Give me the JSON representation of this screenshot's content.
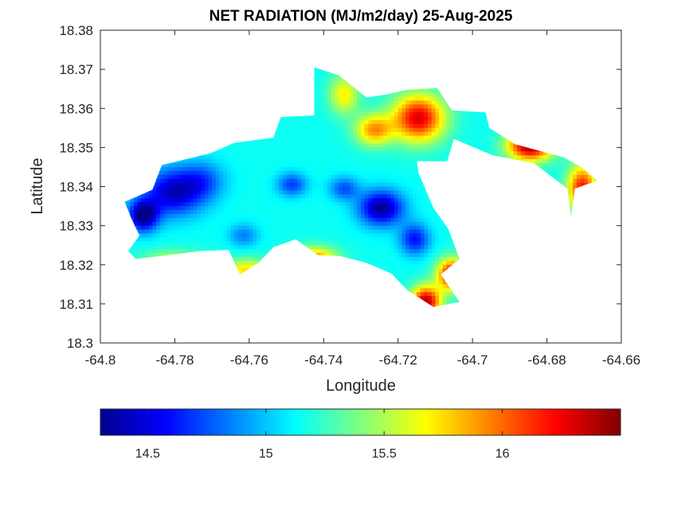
{
  "chart_data": {
    "type": "heatmap",
    "title": "NET RADIATION (MJ/m2/day) 25-Aug-2025",
    "xlabel": "Longitude",
    "ylabel": "Latitude",
    "xlim": [
      -64.8,
      -64.66
    ],
    "ylim": [
      18.3,
      18.38
    ],
    "x_ticks": [
      -64.8,
      -64.78,
      -64.76,
      -64.74,
      -64.72,
      -64.7,
      -64.68,
      -64.66
    ],
    "x_tick_labels": [
      "-64.8",
      "-64.78",
      "-64.76",
      "-64.74",
      "-64.72",
      "-64.7",
      "-64.68",
      "-64.66"
    ],
    "y_ticks": [
      18.3,
      18.31,
      18.32,
      18.33,
      18.34,
      18.35,
      18.36,
      18.37,
      18.38
    ],
    "y_tick_labels": [
      "18.3",
      "18.31",
      "18.32",
      "18.33",
      "18.34",
      "18.35",
      "18.36",
      "18.37",
      "18.38"
    ],
    "grid": false,
    "colormap": "jet",
    "colorbar": {
      "location": "bottom",
      "clim": [
        14.3,
        16.5
      ],
      "ticks": [
        14.5,
        15,
        15.5,
        16
      ],
      "tick_labels": [
        "14.5",
        "15",
        "15.5",
        "16"
      ]
    },
    "region_outline": [
      [
        -64.7925,
        18.3365
      ],
      [
        -64.786,
        18.3392
      ],
      [
        -64.7835,
        18.3455
      ],
      [
        -64.7705,
        18.3485
      ],
      [
        -64.764,
        18.3512
      ],
      [
        -64.7535,
        18.3525
      ],
      [
        -64.7515,
        18.3578
      ],
      [
        -64.7425,
        18.3582
      ],
      [
        -64.7425,
        18.3705
      ],
      [
        -64.736,
        18.3685
      ],
      [
        -64.7285,
        18.3628
      ],
      [
        -64.7235,
        18.3635
      ],
      [
        -64.7175,
        18.3648
      ],
      [
        -64.7095,
        18.3652
      ],
      [
        -64.7055,
        18.3595
      ],
      [
        -64.6965,
        18.359
      ],
      [
        -64.6955,
        18.355
      ],
      [
        -64.6885,
        18.3508
      ],
      [
        -64.6755,
        18.3475
      ],
      [
        -64.6705,
        18.3448
      ],
      [
        -64.6665,
        18.3415
      ],
      [
        -64.6725,
        18.3395
      ],
      [
        -64.6735,
        18.3325
      ],
      [
        -64.6745,
        18.3395
      ],
      [
        -64.6835,
        18.346
      ],
      [
        -64.6945,
        18.348
      ],
      [
        -64.705,
        18.3522
      ],
      [
        -64.7068,
        18.3465
      ],
      [
        -64.715,
        18.3465
      ],
      [
        -64.7145,
        18.3435
      ],
      [
        -64.7105,
        18.3345
      ],
      [
        -64.7065,
        18.3292
      ],
      [
        -64.7035,
        18.3215
      ],
      [
        -64.7085,
        18.3175
      ],
      [
        -64.7035,
        18.3105
      ],
      [
        -64.7105,
        18.3092
      ],
      [
        -64.7175,
        18.3135
      ],
      [
        -64.7218,
        18.3178
      ],
      [
        -64.7285,
        18.3205
      ],
      [
        -64.7355,
        18.3222
      ],
      [
        -64.7415,
        18.3225
      ],
      [
        -64.7475,
        18.3265
      ],
      [
        -64.7535,
        18.3245
      ],
      [
        -64.7575,
        18.3205
      ],
      [
        -64.7625,
        18.3175
      ],
      [
        -64.7655,
        18.3238
      ],
      [
        -64.7735,
        18.3235
      ],
      [
        -64.7815,
        18.3225
      ],
      [
        -64.7905,
        18.3215
      ],
      [
        -64.7925,
        18.3235
      ],
      [
        -64.7895,
        18.3275
      ],
      [
        -64.7915,
        18.3315
      ],
      [
        -64.7935,
        18.3362
      ]
    ],
    "value_field": {
      "background": 15.15,
      "anomalies": [
        {
          "lon": -64.7885,
          "lat": 18.3325,
          "peak": 14.3,
          "lon_scale": 0.004,
          "lat_scale": 0.004
        },
        {
          "lon": -64.7805,
          "lat": 18.3385,
          "peak": 14.45,
          "lon_scale": 0.008,
          "lat_scale": 0.006
        },
        {
          "lon": -64.7725,
          "lat": 18.3415,
          "peak": 14.8,
          "lon_scale": 0.006,
          "lat_scale": 0.005
        },
        {
          "lon": -64.7485,
          "lat": 18.3405,
          "peak": 14.7,
          "lon_scale": 0.004,
          "lat_scale": 0.003
        },
        {
          "lon": -64.7245,
          "lat": 18.3345,
          "peak": 14.35,
          "lon_scale": 0.006,
          "lat_scale": 0.0045
        },
        {
          "lon": -64.7155,
          "lat": 18.3265,
          "peak": 14.6,
          "lon_scale": 0.004,
          "lat_scale": 0.004
        },
        {
          "lon": -64.7615,
          "lat": 18.3275,
          "peak": 14.85,
          "lon_scale": 0.004,
          "lat_scale": 0.003
        },
        {
          "lon": -64.7345,
          "lat": 18.3395,
          "peak": 14.75,
          "lon_scale": 0.004,
          "lat_scale": 0.003
        },
        {
          "lon": -64.7605,
          "lat": 18.3185,
          "peak": 15.75,
          "lon_scale": 0.006,
          "lat_scale": 0.003
        },
        {
          "lon": -64.7805,
          "lat": 18.3205,
          "peak": 15.6,
          "lon_scale": 0.008,
          "lat_scale": 0.003
        },
        {
          "lon": -64.7425,
          "lat": 18.3215,
          "peak": 15.95,
          "lon_scale": 0.006,
          "lat_scale": 0.003
        },
        {
          "lon": -64.7345,
          "lat": 18.3635,
          "peak": 15.7,
          "lon_scale": 0.004,
          "lat_scale": 0.005
        },
        {
          "lon": -64.7265,
          "lat": 18.3545,
          "peak": 15.9,
          "lon_scale": 0.005,
          "lat_scale": 0.004
        },
        {
          "lon": -64.7055,
          "lat": 18.3175,
          "peak": 16.3,
          "lon_scale": 0.004,
          "lat_scale": 0.004
        },
        {
          "lon": -64.7125,
          "lat": 18.3105,
          "peak": 16.4,
          "lon_scale": 0.004,
          "lat_scale": 0.004
        },
        {
          "lon": -64.7145,
          "lat": 18.3575,
          "peak": 16.3,
          "lon_scale": 0.007,
          "lat_scale": 0.006
        },
        {
          "lon": -64.6845,
          "lat": 18.3505,
          "peak": 16.45,
          "lon_scale": 0.006,
          "lat_scale": 0.004
        },
        {
          "lon": -64.6705,
          "lat": 18.3395,
          "peak": 16.2,
          "lon_scale": 0.004,
          "lat_scale": 0.006
        }
      ]
    }
  }
}
